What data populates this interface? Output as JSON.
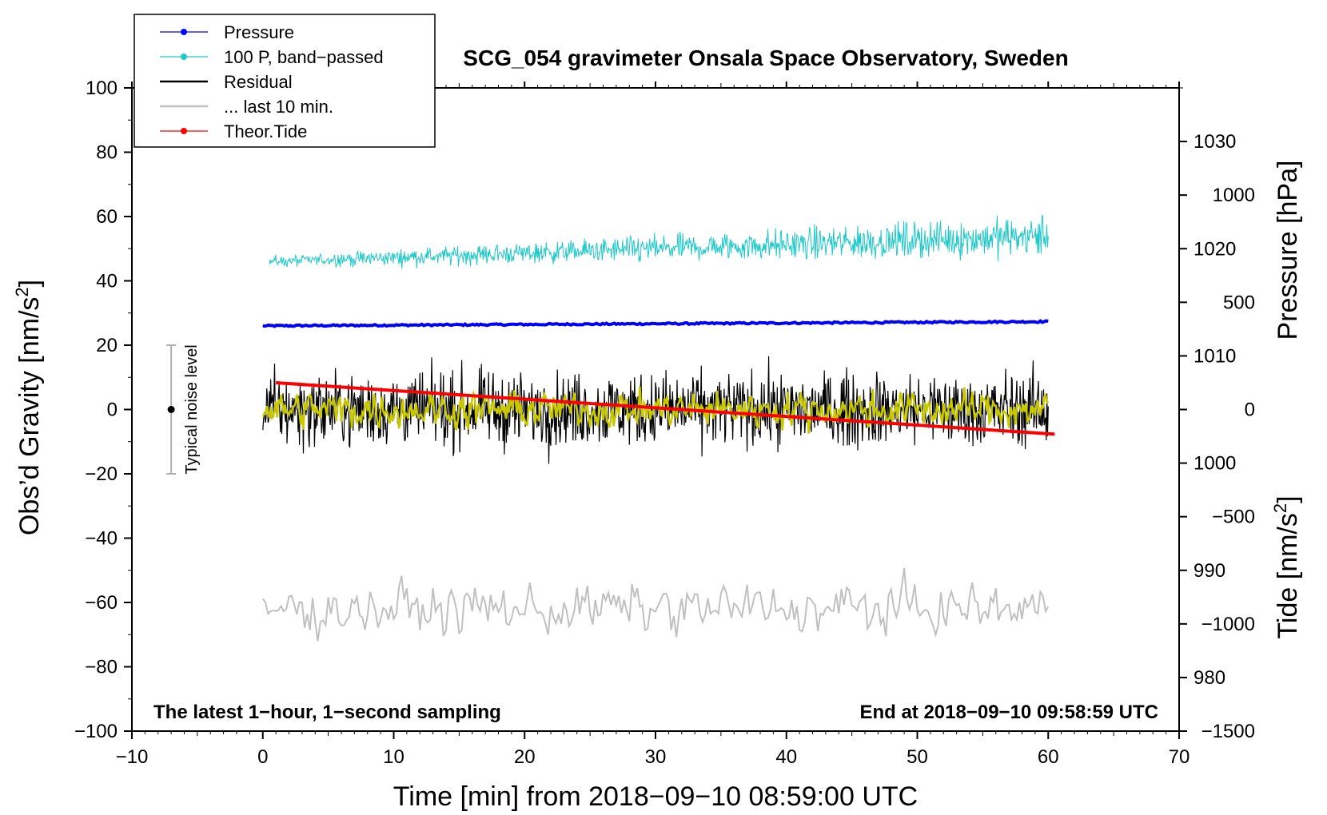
{
  "chart_data": {
    "type": "line",
    "title": "SCG_054 gravimeter Onsala Space Observatory, Sweden",
    "xlabel": "Time [min] from 2018−09−10 08:59:00 UTC",
    "ylabel_left": "Obs’d Gravity [nm/s",
    "ylabel_left_sup": "2",
    "ylabel_left_close": "]",
    "ylabel_right_pressure": "Pressure [hPa]",
    "ylabel_right_tide": "Tide [nm/s",
    "ylabel_right_tide_sup": "2",
    "ylabel_right_tide_close": "]",
    "xlim": [
      -10,
      70
    ],
    "ylim": [
      -100,
      100
    ],
    "pressure_axis": {
      "range": [
        975,
        1035
      ],
      "ticks": [
        980,
        990,
        1000,
        1010,
        1020,
        1030
      ]
    },
    "tide_axis": {
      "range": [
        -1500,
        1500
      ],
      "ticks": [
        1000,
        500,
        0,
        -500,
        -1000,
        -1500
      ]
    },
    "x_ticks": [
      -10,
      0,
      10,
      20,
      30,
      40,
      50,
      60,
      70
    ],
    "x_tick_labels": [
      "−10",
      "0",
      "10",
      "20",
      "30",
      "40",
      "50",
      "60",
      "70"
    ],
    "y_ticks": [
      100,
      80,
      60,
      40,
      20,
      0,
      -20,
      -40,
      -60,
      -80,
      -100
    ],
    "y_tick_labels": [
      "100",
      "80",
      "60",
      "40",
      "20",
      "0",
      "−20",
      "−40",
      "−60",
      "−80",
      "−100"
    ],
    "pressure_tick_labels": [
      "980",
      "990",
      "1000",
      "1010",
      "1020",
      "1030"
    ],
    "tide_tick_labels": [
      "1000",
      "500",
      "0",
      "−500",
      "−1000",
      "−1500"
    ],
    "annotation_left": "The latest 1−hour, 1−second sampling",
    "annotation_right": "End at 2018−09−10 09:58:59 UTC",
    "noise_label": "Typical noise level",
    "noise_bar": {
      "x": -7,
      "center": 0,
      "low": -20,
      "high": 20
    },
    "legend": [
      {
        "label": "Pressure",
        "color": "#0000ff",
        "marker": true
      },
      {
        "label": "100 P, band−passed",
        "color": "#20c8c8",
        "marker": true
      },
      {
        "label": "Residual",
        "color": "#000000",
        "marker": false
      },
      {
        "label": "... last 10 min.",
        "color": "#c0c0c0",
        "marker": false
      },
      {
        "label": "Theor.Tide",
        "color": "#ff0000",
        "marker": true
      }
    ],
    "series": [
      {
        "name": "Pressure",
        "color": "#0000ff",
        "axis": "pressure",
        "x_start": 0,
        "x_end": 60,
        "start": 1012.8,
        "end": 1013.2,
        "noise": 0.15
      },
      {
        "name": "100 P, band−passed",
        "color": "#20c8c8",
        "axis": "gravity",
        "x_start": 0.5,
        "x_end": 60,
        "start": 46,
        "end": 54,
        "noise_start": 1.2,
        "noise_end": 4.5
      },
      {
        "name": "Residual",
        "color": "#000000",
        "axis": "gravity",
        "x_start": 0,
        "x_end": 60,
        "center": 0,
        "noise": 8
      },
      {
        "name": "Residual (smoothed)",
        "color": "#c8c800",
        "axis": "gravity",
        "x_start": 0,
        "x_end": 60,
        "center": 0,
        "noise": 4
      },
      {
        "name": "... last 10 min.",
        "color": "#c0c0c0",
        "axis": "gravity",
        "x_start": 0,
        "x_end": 60,
        "center": -62,
        "noise": 5
      },
      {
        "name": "Theor.Tide",
        "color": "#ff0000",
        "axis": "tide",
        "x_start": 1,
        "x_end": 60.5,
        "start": 125,
        "end": -115
      }
    ]
  }
}
